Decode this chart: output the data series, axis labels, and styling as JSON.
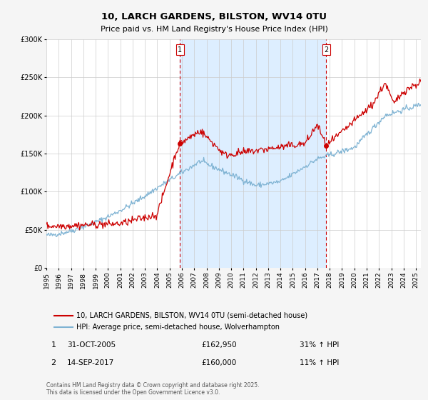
{
  "title": "10, LARCH GARDENS, BILSTON, WV14 0TU",
  "subtitle": "Price paid vs. HM Land Registry's House Price Index (HPI)",
  "legend_entry1": "10, LARCH GARDENS, BILSTON, WV14 0TU (semi-detached house)",
  "legend_entry2": "HPI: Average price, semi-detached house, Wolverhampton",
  "marker1_date": "31-OCT-2005",
  "marker1_price": 162950,
  "marker1_price_str": "£162,950",
  "marker1_hpi": "31% ↑ HPI",
  "marker2_date": "14-SEP-2017",
  "marker2_price": 160000,
  "marker2_price_str": "£160,000",
  "marker2_hpi": "11% ↑ HPI",
  "xmin": 1995,
  "xmax": 2025,
  "ymin": 0,
  "ymax": 300000,
  "yticks": [
    0,
    50000,
    100000,
    150000,
    200000,
    250000,
    300000
  ],
  "ytick_labels": [
    "£0",
    "£50K",
    "£100K",
    "£150K",
    "£200K",
    "£250K",
    "£300K"
  ],
  "xticks": [
    1995,
    1996,
    1997,
    1998,
    1999,
    2000,
    2001,
    2002,
    2003,
    2004,
    2005,
    2006,
    2007,
    2008,
    2009,
    2010,
    2011,
    2012,
    2013,
    2014,
    2015,
    2016,
    2017,
    2018,
    2019,
    2020,
    2021,
    2022,
    2023,
    2024,
    2025
  ],
  "red_color": "#cc0000",
  "blue_color": "#7fb3d3",
  "shade_color": "#ddeeff",
  "marker_x1": 2005.83,
  "marker_x2": 2017.71,
  "footer": "Contains HM Land Registry data © Crown copyright and database right 2025.\nThis data is licensed under the Open Government Licence v3.0.",
  "bg_color": "#f5f5f5",
  "plot_bg": "#ffffff"
}
